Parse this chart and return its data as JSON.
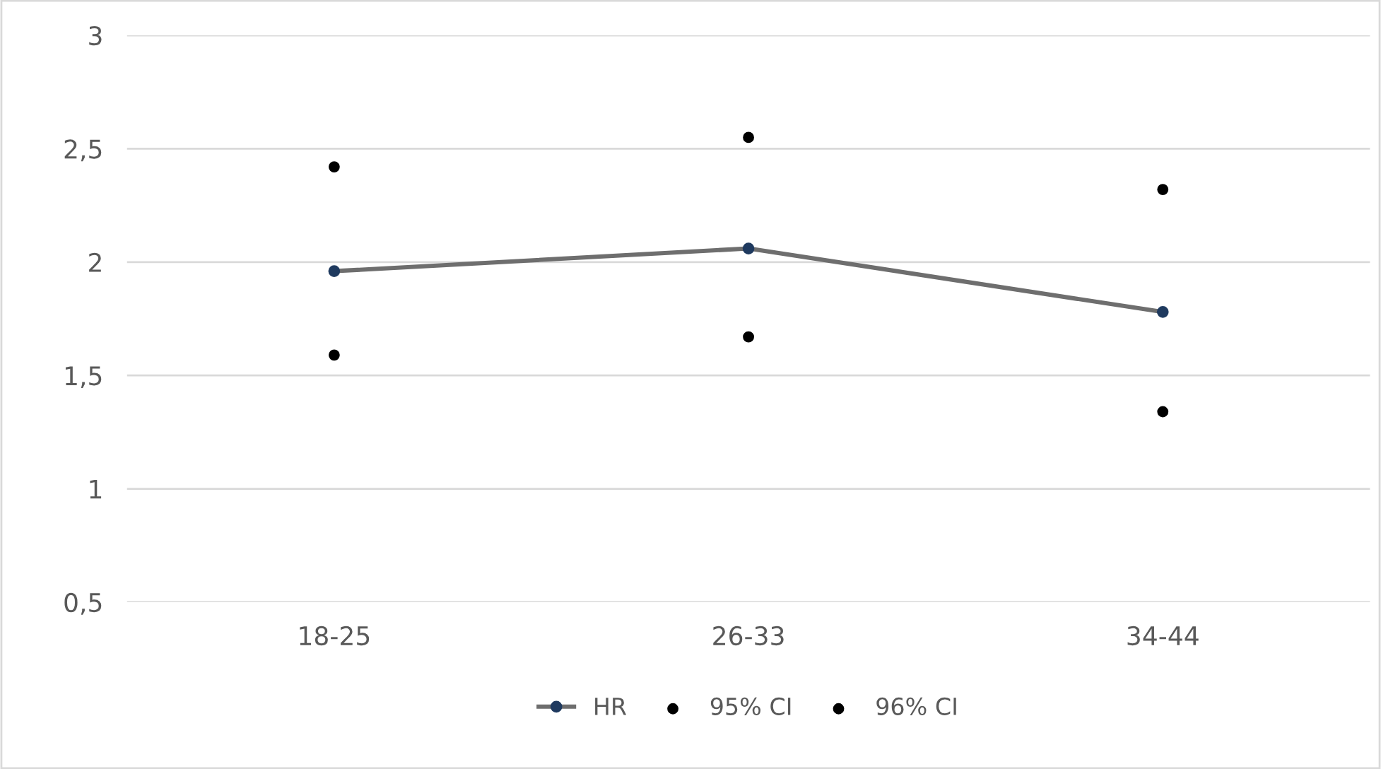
{
  "chart_data": {
    "type": "line",
    "categories": [
      "18-25",
      "26-33",
      "34-44"
    ],
    "series": [
      {
        "name": "HR",
        "color": "#6e6e6e",
        "marker": "circle",
        "values": [
          1.96,
          2.06,
          1.78
        ]
      },
      {
        "name": "95% CI",
        "type": "scatter",
        "color": "#000000",
        "marker": "circle",
        "values": [
          1.59,
          1.67,
          1.34
        ]
      },
      {
        "name": "96% CI",
        "type": "scatter",
        "color": "#000000",
        "marker": "circle",
        "values": [
          2.42,
          2.55,
          2.32
        ]
      }
    ],
    "ylim": [
      0.5,
      3
    ],
    "yticks": [
      {
        "value": 0.5,
        "label": "0,5"
      },
      1,
      {
        "value": 1.5,
        "label": "1,5"
      },
      2,
      {
        "value": 2.5,
        "label": "2,5"
      },
      3
    ],
    "grid": "y",
    "legend": "bottom",
    "line_style": "solid"
  }
}
